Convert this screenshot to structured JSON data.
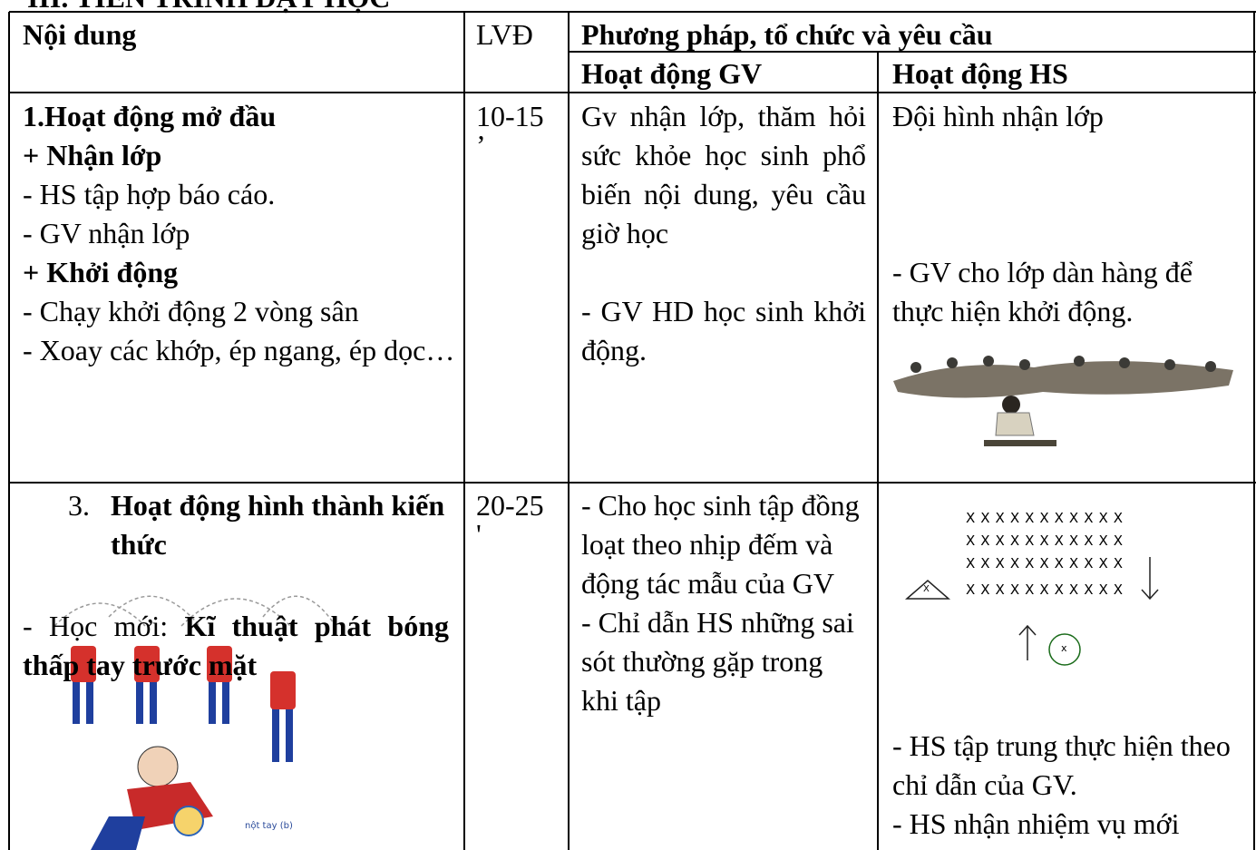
{
  "heading": "III. TIẾN TRÌNH DẠY HỌC",
  "table": {
    "header": {
      "content": "Nội dung",
      "time": "LVĐ",
      "method": "Phương pháp, tổ chức và yêu cầu",
      "teacher": "Hoạt động GV",
      "student": "Hoạt động HS"
    },
    "rows": [
      {
        "content": [
          "1.Hoạt động mở đầu",
          "+ Nhận lớp",
          "- HS tập hợp báo cáo.",
          "- GV nhận lớp",
          "+ Khởi động",
          "- Chạy khởi động 2 vòng sân",
          "- Xoay các khớp, ép ngang, ép dọc…"
        ],
        "time": [
          "10-15",
          "’"
        ],
        "teacher": [
          "Gv nhận lớp, thăm hỏi sức khỏe học sinh phổ biến nội dung, yêu cầu giờ học",
          "- GV HD học sinh khởi động."
        ],
        "student": [
          "Đội hình nhận lớp",
          "- GV cho lớp dàn hàng để thực hiện khởi động."
        ]
      },
      {
        "content": [
          "3.",
          "Hoạt động hình thành kiến thức",
          "- Học mới: ",
          "Kĩ thuật phát bóng thấp tay trước mặt"
        ],
        "image_caption": "nột tay (b)",
        "time": [
          "20-25",
          "'"
        ],
        "teacher": [
          "- Cho học sinh tập đồng loạt theo nhịp đếm và động tác mẫu của GV",
          "- Chỉ dẫn HS những sai sót thường gặp trong khi tập"
        ],
        "formation": {
          "rows": [
            "XXXXXXXXXXX",
            "XXXXXXXXXXX",
            "XXXXXXXXXXX",
            "XXXXXXXXXXX"
          ],
          "teacher_mark": "X",
          "student_mark": "x"
        },
        "student": [
          "- HS tập trung thực hiện theo chỉ dẫn của GV.",
          "- HS nhận nhiệm vụ mới"
        ]
      }
    ]
  }
}
